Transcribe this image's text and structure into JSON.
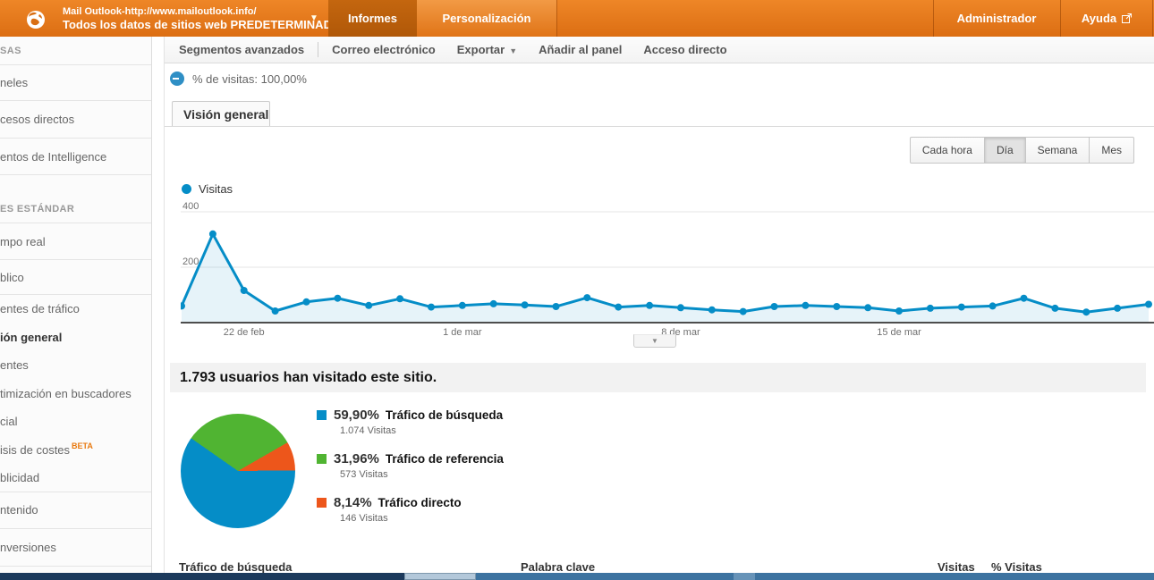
{
  "header": {
    "account_line1": "Mail Outlook-http://www.mailoutlook.info/",
    "account_line2": "Todos los datos de sitios web PREDETERMINADO",
    "nav_tabs": [
      {
        "label": "Informes",
        "selected": true
      },
      {
        "label": "Personalización",
        "selected": false
      }
    ],
    "admin_label": "Administrador",
    "help_label": "Ayuda"
  },
  "toolbar": {
    "items": [
      "Segmentos avanzados",
      "Correo electrónico",
      "Exportar",
      "Añadir al panel",
      "Acceso directo"
    ]
  },
  "visits_badge": {
    "label": "% de visitas: 100,00%"
  },
  "overview_tab": {
    "label": "Visión general"
  },
  "time_buttons": {
    "options": [
      "Cada hora",
      "Día",
      "Semana",
      "Mes"
    ],
    "selected": "Día"
  },
  "sidebar": {
    "sections": [
      {
        "header": "SAS",
        "items": [
          {
            "label": "neles"
          },
          {
            "label": "cesos directos"
          },
          {
            "label": "entos de Intelligence"
          }
        ]
      },
      {
        "header": "ES ESTÁNDAR",
        "items": [
          {
            "label": "mpo real"
          },
          {
            "label": "blico"
          },
          {
            "label": "entes de tráfico"
          },
          {
            "label": "ión general",
            "selected": true
          },
          {
            "label": "entes"
          },
          {
            "label": "timización en buscadores"
          },
          {
            "label": "cial"
          },
          {
            "label": "isis de costes",
            "badge": "BETA"
          },
          {
            "label": "blicidad"
          },
          {
            "label": "ntenido"
          },
          {
            "label": "nversiones"
          }
        ]
      }
    ]
  },
  "headline": "1.793 usuarios han visitado este sitio.",
  "chart_data": [
    {
      "type": "line",
      "title": "Visitas",
      "series": [
        {
          "name": "Visitas",
          "values": [
            60,
            320,
            116,
            42,
            75,
            88,
            62,
            86,
            56,
            62,
            68,
            64,
            58,
            90,
            56,
            62,
            54,
            46,
            40,
            58,
            62,
            58,
            54,
            42,
            52,
            56,
            60,
            88,
            52,
            38,
            52,
            66
          ]
        }
      ],
      "x_tick_labels": {
        "2": "22 de feb",
        "9": "1 de mar",
        "16": "8 de mar",
        "23": "15 de mar"
      },
      "ylim": [
        0,
        400
      ],
      "yticks": [
        {
          "value": 200,
          "label": "200"
        },
        {
          "value": 400,
          "label": "400"
        }
      ],
      "grid": "horizontal",
      "line_color": "#058dc7",
      "area_color": "rgba(5,141,199,0.10)"
    },
    {
      "type": "pie",
      "slices": [
        {
          "label": "Tráfico de búsqueda",
          "pct": 59.9,
          "pct_label": "59,90%",
          "visits": 1074,
          "visits_label": "1.074 Visitas",
          "color": "#058dc7"
        },
        {
          "label": "Tráfico de referencia",
          "pct": 31.96,
          "pct_label": "31,96%",
          "visits": 573,
          "visits_label": "573 Visitas",
          "color": "#50b432"
        },
        {
          "label": "Tráfico directo",
          "pct": 8.14,
          "pct_label": "8,14%",
          "visits": 146,
          "visits_label": "146 Visitas",
          "color": "#ed561b"
        }
      ],
      "start_deg": 305,
      "draw_order": [
        1,
        2,
        0
      ]
    }
  ],
  "table_headers": {
    "col1": "Tráfico de búsqueda",
    "col2": "Palabra clave",
    "col3": "Visitas",
    "col4": "% Visitas"
  },
  "colors": {
    "brand_orange": "#e67617",
    "selected_tab_orange": "#bd5c0e",
    "chart_blue": "#058dc7"
  }
}
